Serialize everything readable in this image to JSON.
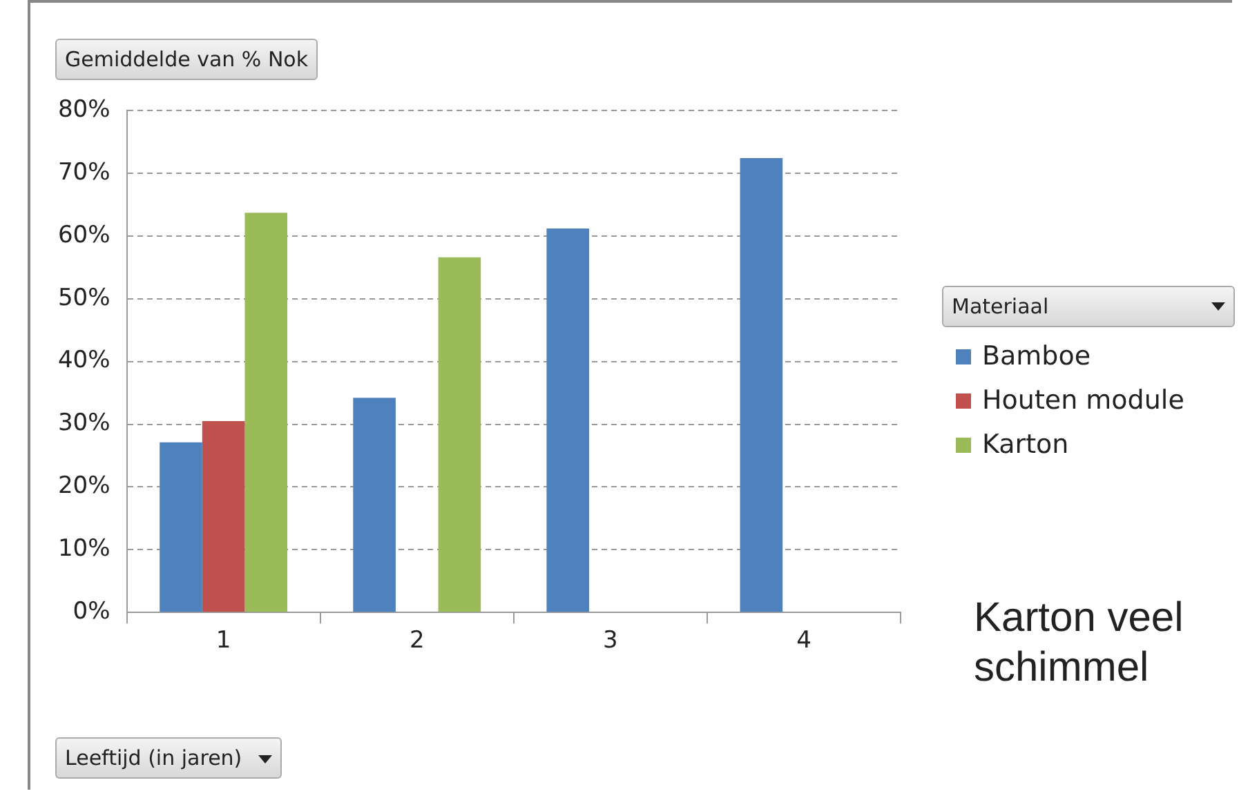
{
  "chart_data": {
    "type": "bar",
    "title": "Gemiddelde van % Nok",
    "xlabel": "Leeftijd (in jaren)",
    "legend_title": "Materiaal",
    "categories": [
      "1",
      "2",
      "3",
      "4"
    ],
    "series": [
      {
        "name": "Bamboe",
        "color": "#4f81bd",
        "values": [
          27.1,
          34.2,
          61.2,
          72.4
        ]
      },
      {
        "name": "Houten module",
        "color": "#c0504d",
        "values": [
          30.5,
          null,
          null,
          null
        ]
      },
      {
        "name": "Karton",
        "color": "#9bbb59",
        "values": [
          63.7,
          56.6,
          null,
          null
        ]
      }
    ],
    "ylim": [
      0,
      80
    ],
    "yticks": [
      {
        "value": 0,
        "label": "0%"
      },
      {
        "value": 10,
        "label": "10%"
      },
      {
        "value": 20,
        "label": "20%"
      },
      {
        "value": 30,
        "label": "30%"
      },
      {
        "value": 40,
        "label": "40%"
      },
      {
        "value": 50,
        "label": "50%"
      },
      {
        "value": 60,
        "label": "60%"
      },
      {
        "value": 70,
        "label": "70%"
      },
      {
        "value": 80,
        "label": "80%"
      }
    ],
    "grid": "y",
    "line_style": "dashed",
    "legend": "right",
    "annotations": [
      "Karton veel schimmel"
    ]
  }
}
